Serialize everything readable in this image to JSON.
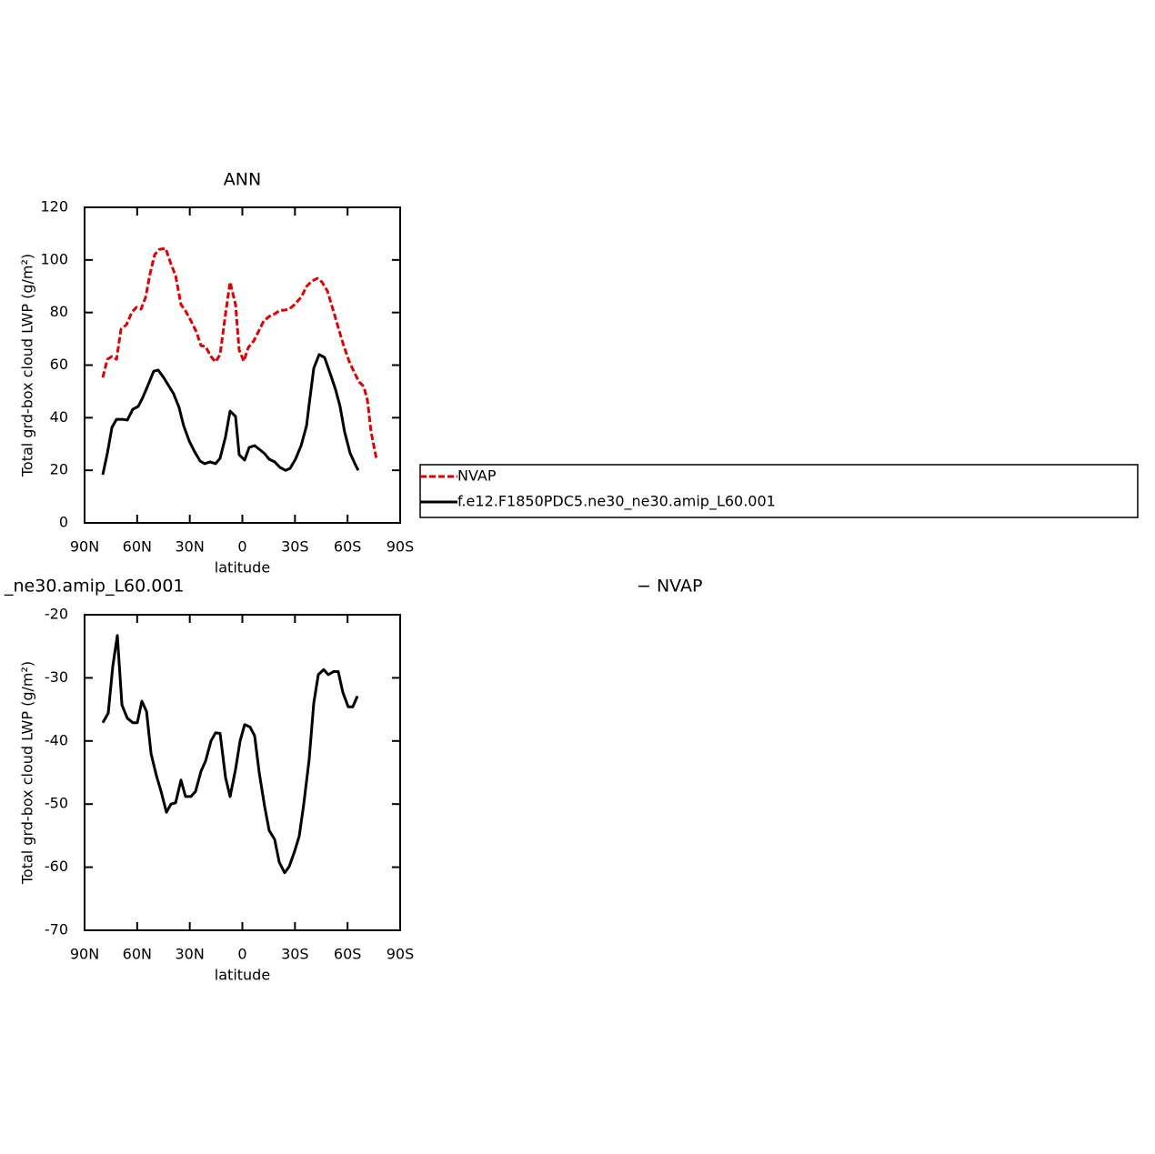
{
  "chart_data": [
    {
      "type": "line",
      "title": "ANN",
      "xlabel": "latitude",
      "ylabel": "Total grd-box cloud LWP (g/m²)",
      "xlim": [
        90,
        -90
      ],
      "xticks": [
        {
          "value": 90,
          "label": "90N"
        },
        {
          "value": 60,
          "label": "60N"
        },
        {
          "value": 30,
          "label": "30N"
        },
        0,
        {
          "value": -30,
          "label": "30S"
        },
        {
          "value": -60,
          "label": "60S"
        },
        {
          "value": -90,
          "label": "90S"
        }
      ],
      "ylim": [
        0,
        120
      ],
      "yticks": [
        0,
        20,
        40,
        60,
        80,
        100,
        120
      ],
      "legend": "right",
      "series": [
        {
          "name": "NVAP",
          "color": "#e00000",
          "dashed": true,
          "x": [
            79.6,
            77,
            74.4,
            71.8,
            69.2,
            66.1,
            63,
            60.4,
            57.8,
            55.2,
            52.6,
            50,
            47.5,
            43.8,
            40.7,
            38.1,
            35,
            32.4,
            29.3,
            26.2,
            23.6,
            21,
            17.9,
            15.3,
            12.7,
            9.6,
            7,
            3.9,
            1.8,
            -0.8,
            -3.4,
            -6.5,
            -9.1,
            -12.2,
            -15.3,
            -18.4,
            -21.5,
            -24.1,
            -26.7,
            -29.8,
            -33.5,
            -36.6,
            -39.7,
            -42.8,
            -45.4,
            -48.5,
            -51.6,
            -54.7,
            -57.8,
            -60.9,
            -64,
            -66.6,
            -69.2,
            -71.3,
            -73.4,
            -76.5
          ],
          "values": [
            55.3,
            62.2,
            63.3,
            62.2,
            73.7,
            75.4,
            80.2,
            82,
            81.3,
            85.8,
            95,
            102,
            104,
            104.4,
            98.5,
            94,
            83,
            80.6,
            76.8,
            72.6,
            67.4,
            67.1,
            63.3,
            61.2,
            64,
            79.5,
            91.6,
            83,
            65.7,
            61.5,
            66.7,
            69.2,
            72.6,
            76.8,
            78.5,
            79.5,
            80.9,
            80.9,
            81.3,
            83,
            85.8,
            89.9,
            92,
            93,
            91.6,
            88.2,
            81.3,
            74.3,
            67.4,
            61.5,
            57,
            53.6,
            51.9,
            46.7,
            34.6,
            24.2
          ]
        },
        {
          "name": "f.e12.F1850PDC5.ne30_ne30.amip_L60.001",
          "color": "#000000",
          "dashed": false,
          "x": [
            79.6,
            77,
            74.4,
            71.8,
            68.7,
            65.6,
            62.5,
            59.4,
            56.8,
            53.7,
            50.6,
            48,
            44.9,
            41.8,
            39.2,
            36.1,
            33.5,
            30.3,
            27.2,
            24.1,
            21.5,
            18.4,
            15.3,
            12.7,
            9.6,
            7,
            3.9,
            1.8,
            -1.3,
            -3.9,
            -7,
            -9.6,
            -12.7,
            -15.3,
            -18.4,
            -21.5,
            -24.6,
            -27.2,
            -30.3,
            -33.5,
            -36.6,
            -38.1,
            -40.7,
            -43.8,
            -46.9,
            -50,
            -53.1,
            -55.7,
            -58.3,
            -61.4,
            -64.5,
            -66.1
          ],
          "values": [
            18.3,
            26.6,
            36.3,
            39.4,
            39.4,
            39.1,
            43.2,
            44.3,
            47.7,
            52.6,
            57.7,
            58.1,
            55.3,
            51.9,
            49.1,
            43.9,
            37,
            31.1,
            27,
            23.5,
            22.5,
            23.2,
            22.5,
            24.6,
            32.8,
            42.5,
            40.5,
            25.9,
            23.9,
            28.7,
            29.4,
            28,
            26.3,
            24.2,
            23.2,
            21.1,
            20,
            20.7,
            24.2,
            29.4,
            37,
            45,
            58.8,
            64,
            62.9,
            57,
            50.8,
            44.3,
            34.6,
            26.6,
            22.1,
            20
          ]
        }
      ]
    },
    {
      "type": "line",
      "title_left": "_ne30.amip_L60.001",
      "title_right": "− NVAP",
      "xlabel": "latitude",
      "ylabel": "Total grd-box cloud LWP (g/m²)",
      "xlim": [
        90,
        -90
      ],
      "xticks": [
        {
          "value": 90,
          "label": "90N"
        },
        {
          "value": 60,
          "label": "60N"
        },
        {
          "value": 30,
          "label": "30N"
        },
        0,
        {
          "value": -30,
          "label": "30S"
        },
        {
          "value": -60,
          "label": "60S"
        },
        {
          "value": -90,
          "label": "90S"
        }
      ],
      "ylim": [
        -70,
        -20
      ],
      "yticks": [
        -70,
        -60,
        -50,
        -40,
        -30,
        -20
      ],
      "series": [
        {
          "color": "#000000",
          "dashed": false,
          "x": [
            79.6,
            76.5,
            73.9,
            71.3,
            68.7,
            65.6,
            62.5,
            59.9,
            57.3,
            54.7,
            52.1,
            49,
            46.4,
            43.3,
            40.7,
            38.1,
            35,
            32.4,
            29.3,
            26.7,
            23.6,
            21,
            17.9,
            15.3,
            12.7,
            9.6,
            7,
            3.9,
            1.3,
            -1.3,
            -4.4,
            -7,
            -9.6,
            -12.7,
            -15.3,
            -18.4,
            -21,
            -24.1,
            -26.7,
            -29.8,
            -32.4,
            -35,
            -38.1,
            -40.7,
            -43.3,
            -46.4,
            -49,
            -52.1,
            -54.7,
            -57.3,
            -60.4,
            -63,
            -65.6
          ],
          "values": [
            -37.1,
            -35.6,
            -28.2,
            -23.3,
            -34.3,
            -36.4,
            -37.1,
            -37.1,
            -33.7,
            -35.3,
            -42,
            -45.5,
            -48,
            -51.3,
            -50,
            -49.8,
            -46.2,
            -48.8,
            -48.8,
            -48,
            -44.8,
            -43.2,
            -40,
            -38.7,
            -38.8,
            -45.8,
            -48.8,
            -44.5,
            -40,
            -37.4,
            -37.8,
            -39.2,
            -45,
            -50.4,
            -54.2,
            -55.6,
            -59.2,
            -60.9,
            -59.9,
            -57.5,
            -55.1,
            -50,
            -43,
            -34,
            -29.5,
            -28.7,
            -29.5,
            -29,
            -29,
            -32.3,
            -34.6,
            -34.6,
            -32.9
          ]
        }
      ]
    }
  ]
}
